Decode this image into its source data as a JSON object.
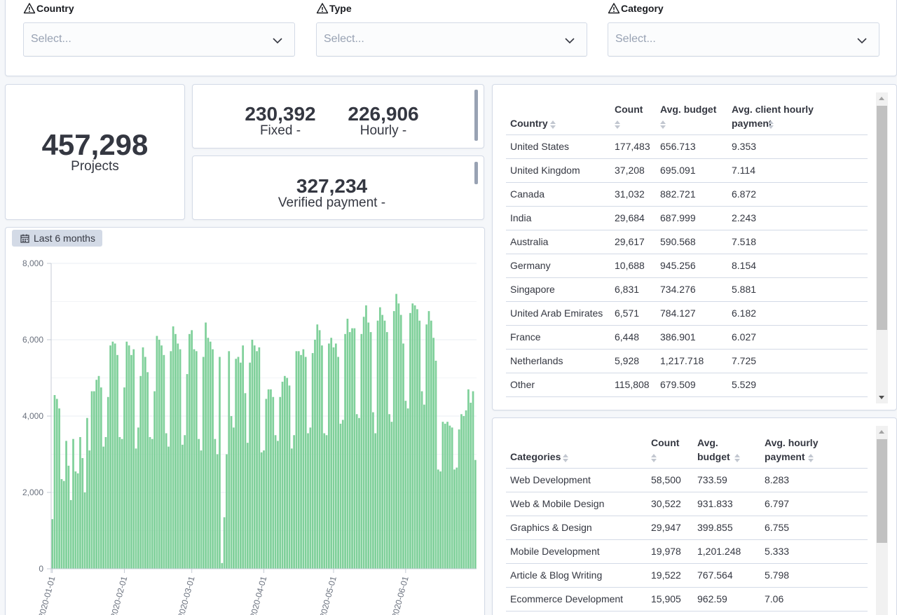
{
  "filters": [
    {
      "label": "Country",
      "placeholder": "Select..."
    },
    {
      "label": "Type",
      "placeholder": "Select..."
    },
    {
      "label": "Category",
      "placeholder": "Select..."
    }
  ],
  "metrics": {
    "projects": {
      "value": "457,298",
      "label": "Projects"
    },
    "fixed": {
      "value": "230,392",
      "label": "Fixed -"
    },
    "hourly": {
      "value": "226,906",
      "label": "Hourly -"
    },
    "verified": {
      "value": "327,234",
      "label": "Verified payment -"
    }
  },
  "time_filter": {
    "label": "Last 6 months"
  },
  "country_table": {
    "headers": [
      "Country",
      "Count",
      "Avg. budget",
      "Avg. client hourly payment"
    ],
    "rows": [
      [
        "United States",
        "177,483",
        "656.713",
        "9.353"
      ],
      [
        "United Kingdom",
        "37,208",
        "695.091",
        "7.114"
      ],
      [
        "Canada",
        "31,032",
        "882.721",
        "6.872"
      ],
      [
        "India",
        "29,684",
        "687.999",
        "2.243"
      ],
      [
        "Australia",
        "29,617",
        "590.568",
        "7.518"
      ],
      [
        "Germany",
        "10,688",
        "945.256",
        "8.154"
      ],
      [
        "Singapore",
        "6,831",
        "734.276",
        "5.881"
      ],
      [
        "United Arab Emirates",
        "6,571",
        "784.127",
        "6.182"
      ],
      [
        "France",
        "6,448",
        "386.901",
        "6.027"
      ],
      [
        "Netherlands",
        "5,928",
        "1,217.718",
        "7.725"
      ],
      [
        "Other",
        "115,808",
        "679.509",
        "5.529"
      ]
    ]
  },
  "category_table": {
    "headers": [
      "Categories",
      "Count",
      "Avg. budget",
      "Avg. hourly payment"
    ],
    "rows": [
      [
        "Web Development",
        "58,500",
        "733.59",
        "8.283"
      ],
      [
        "Web & Mobile Design",
        "30,522",
        "931.833",
        "6.797"
      ],
      [
        "Graphics & Design",
        "29,947",
        "399.855",
        "6.755"
      ],
      [
        "Mobile Development",
        "19,978",
        "1,201.248",
        "5.333"
      ],
      [
        "Article & Blog Writing",
        "19,522",
        "767.564",
        "5.798"
      ],
      [
        "Ecommerce Development",
        "15,905",
        "962.59",
        "7.06"
      ]
    ]
  },
  "chart_data": {
    "type": "bar",
    "color": "#7fd09a",
    "ylim": [
      0,
      8000
    ],
    "yticks": [
      0,
      2000,
      4000,
      6000,
      8000
    ],
    "ytick_labels": [
      "0",
      "2,000",
      "4,000",
      "6,000",
      "8,000"
    ],
    "xtick_labels": [
      "2020-01-01",
      "2020-02-01",
      "2020-03-01",
      "2020-04-01",
      "2020-05-01",
      "2020-06-01"
    ],
    "x": {
      "start": "2020-01-01",
      "end": "2020-06-18",
      "interval": "1d"
    },
    "values": [
      1300,
      4550,
      4450,
      4200,
      2350,
      2300,
      3350,
      2700,
      1800,
      3400,
      2550,
      2500,
      3450,
      2900,
      2000,
      3950,
      3100,
      4650,
      4650,
      4950,
      5050,
      4750,
      3200,
      3450,
      4500,
      5850,
      5950,
      5900,
      5600,
      3450,
      3400,
      4750,
      5950,
      5850,
      5600,
      5750,
      3150,
      3700,
      5050,
      5800,
      5550,
      5150,
      3450,
      3400,
      4650,
      6100,
      6000,
      5850,
      5600,
      3550,
      3200,
      5700,
      6350,
      6150,
      5900,
      5750,
      3250,
      3500,
      5100,
      6150,
      6250,
      5750,
      5700,
      3400,
      3100,
      5550,
      6450,
      6050,
      5950,
      5750,
      3400,
      3000,
      5550,
      150,
      1350,
      3000,
      5700,
      4000,
      3700,
      5500,
      5550,
      5400,
      5850,
      4600,
      3300,
      5400,
      6000,
      5850,
      5700,
      5800,
      3050,
      3100,
      4450,
      4700,
      4700,
      4500,
      3500,
      3350,
      4500,
      4900,
      5050,
      5000,
      4800,
      3150,
      3500,
      5700,
      5700,
      5600,
      5750,
      5550,
      3550,
      3700,
      5650,
      6000,
      6400,
      6250,
      5850,
      3550,
      3500,
      5900,
      6050,
      5800,
      5900,
      5550,
      3800,
      3900,
      6150,
      6550,
      6200,
      6300,
      6300,
      4050,
      3950,
      6150,
      6600,
      6900,
      6450,
      6200,
      4100,
      3550,
      6500,
      6850,
      6650,
      6500,
      6200,
      4050,
      3850,
      6750,
      7200,
      6950,
      6650,
      5900,
      4400,
      4200,
      6700,
      6950,
      6900,
      6800,
      6500,
      4650,
      4300,
      6400,
      6750,
      6500,
      6050,
      5450,
      2600,
      2550,
      3850,
      3800,
      3850,
      3750,
      3700,
      2600,
      2650,
      3650,
      4050,
      4000,
      4150,
      4700,
      4350,
      4650,
      2850
    ]
  }
}
